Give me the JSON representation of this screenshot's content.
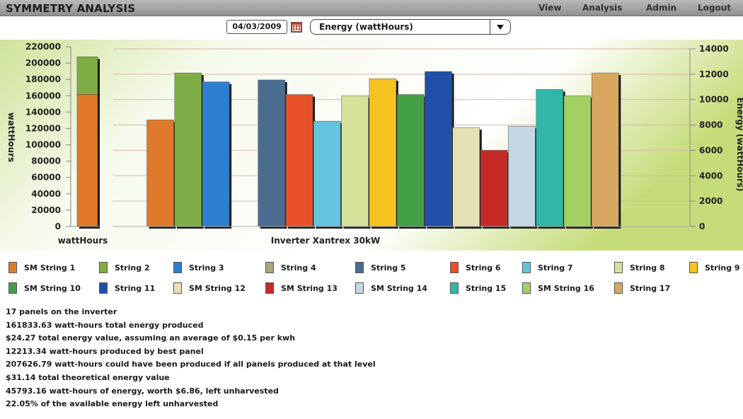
{
  "app_title": "SYMMETRY ANALYSIS",
  "menu": [
    {
      "label": "View",
      "name": "menu-view"
    },
    {
      "label": "Analysis",
      "name": "menu-analysis"
    },
    {
      "label": "Admin",
      "name": "menu-admin"
    },
    {
      "label": "Logout",
      "name": "menu-logout"
    }
  ],
  "controls": {
    "date": "04/03/2009",
    "measure": "Energy (wattHours)",
    "calendar_icon": "calendar-icon",
    "dropdown_icon": "chevron-down-icon"
  },
  "chart_data": {
    "type": "bar",
    "left_axis": {
      "label": "wattHours",
      "ylim": [
        0,
        220000
      ],
      "ticks": [
        "0",
        "20000",
        "40000",
        "60000",
        "80000",
        "100000",
        "120000",
        "140000",
        "160000",
        "180000",
        "200000",
        "220000"
      ]
    },
    "right_axis": {
      "label": "Energy (wattHours)",
      "ylim": [
        0,
        14000
      ],
      "ticks": [
        "0",
        "2000",
        "4000",
        "6000",
        "8000",
        "10000",
        "12000",
        "14000"
      ]
    },
    "total_bar": {
      "category": "wattHours",
      "produced": 161833.63,
      "unharvested": 45793.16,
      "colors": [
        "#e07a2a",
        "#7fae46"
      ]
    },
    "category": "Inverter Xantrex 30kW",
    "series": [
      {
        "name": "SM String 1",
        "value": 8400,
        "color": "#e07a2a"
      },
      {
        "name": "String 2",
        "value": 12100,
        "color": "#7fae46"
      },
      {
        "name": "String 3",
        "value": 11400,
        "color": "#2f7fd0"
      },
      {
        "name": "String 4",
        "value": null,
        "color": "#a8a57e"
      },
      {
        "name": "String 5",
        "value": 11550,
        "color": "#4a6c8f"
      },
      {
        "name": "String 6",
        "value": 10400,
        "color": "#e8502a"
      },
      {
        "name": "String 7",
        "value": 8300,
        "color": "#62c4e0"
      },
      {
        "name": "String 8",
        "value": 10300,
        "color": "#d6e29a"
      },
      {
        "name": "String 9",
        "value": 11650,
        "color": "#f6c320"
      },
      {
        "name": "SM String 10",
        "value": 10400,
        "color": "#43a047"
      },
      {
        "name": "String 11",
        "value": 12213.34,
        "color": "#1f4fa8"
      },
      {
        "name": "SM String 12",
        "value": 7800,
        "color": "#e6e0b5"
      },
      {
        "name": "SM String 13",
        "value": 6000,
        "color": "#c62a28"
      },
      {
        "name": "SM String 14",
        "value": 7900,
        "color": "#c5d7e2"
      },
      {
        "name": "String 15",
        "value": 10800,
        "color": "#30b7a8"
      },
      {
        "name": "SM String 16",
        "value": 10300,
        "color": "#a3d063"
      },
      {
        "name": "String 17",
        "value": 12100,
        "color": "#d9a860"
      }
    ]
  },
  "summary": [
    "17 panels on the inverter",
    "161833.63 watt-hours total energy produced",
    "$24.27 total energy value, assuming an average of $0.15 per kwh",
    "12213.34 watt-hours produced by best panel",
    "207626.79 watt-hours could have been produced if all panels produced at that level",
    "$31.14 total theoretical energy value",
    "45793.16 watt-hours of energy, worth $6.86, left unharvested",
    "22.05% of the available energy left unharvested"
  ]
}
